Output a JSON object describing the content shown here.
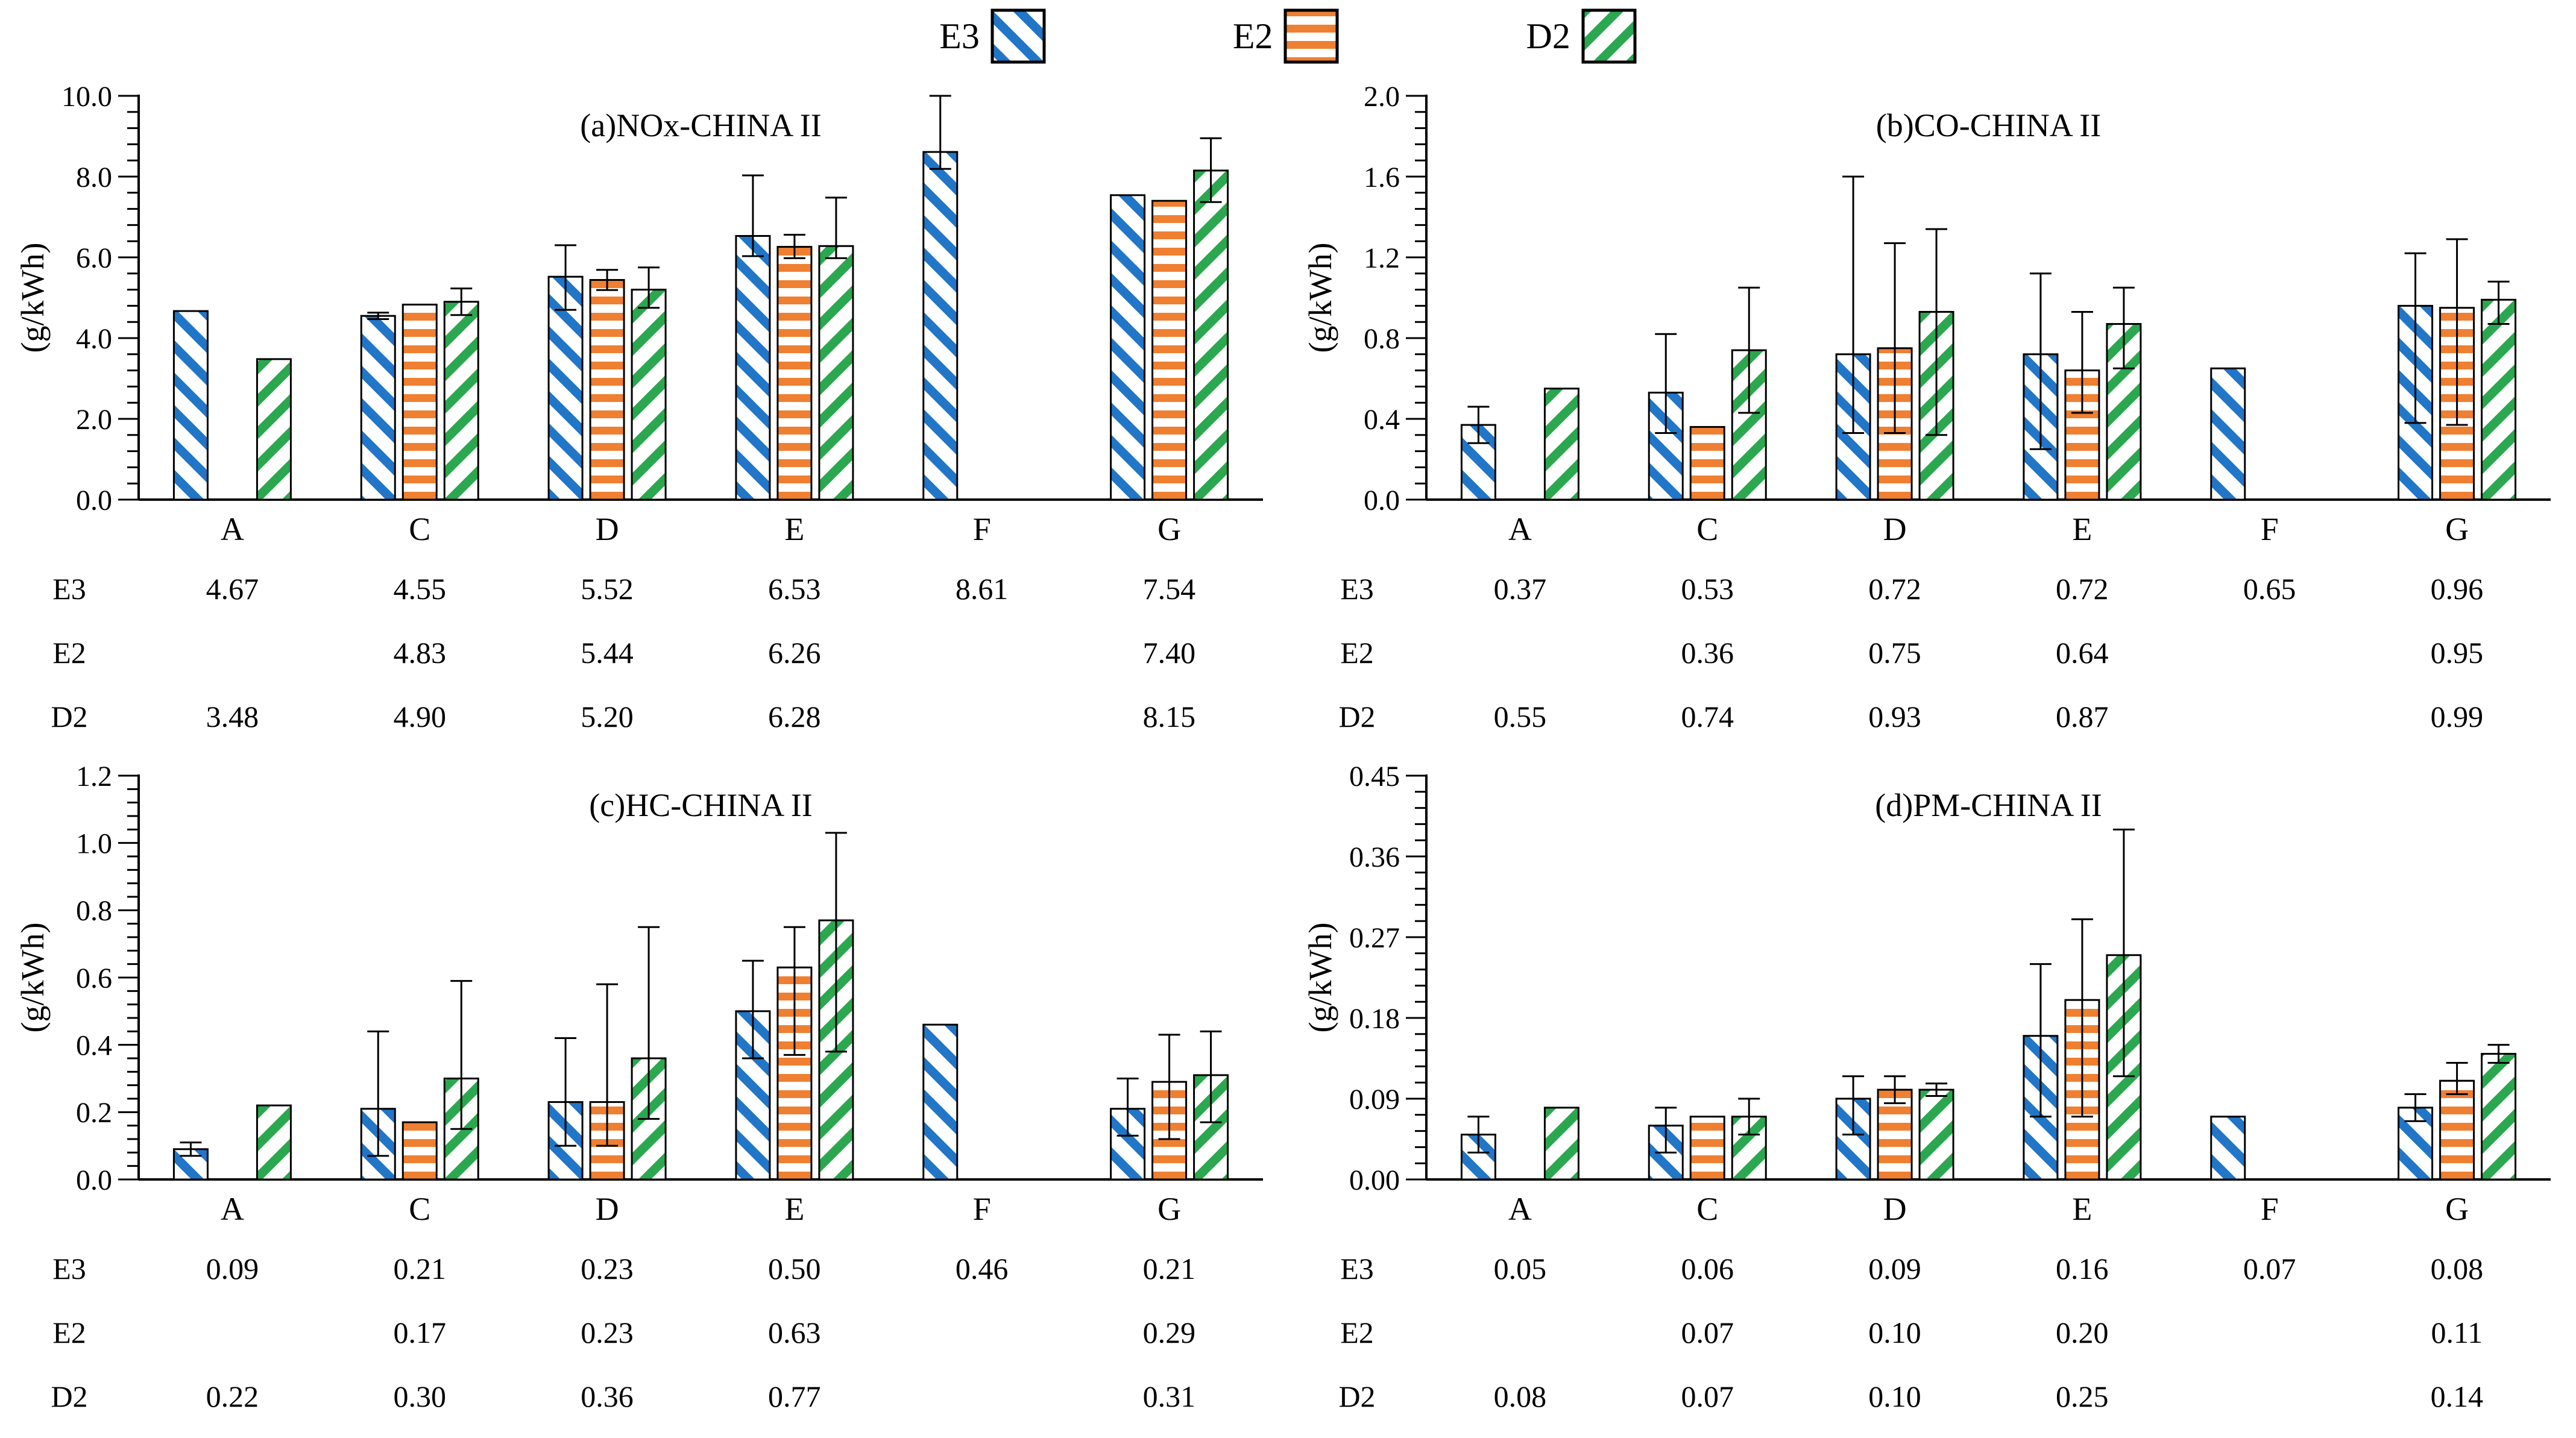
{
  "legend": {
    "items": [
      {
        "label": "E3",
        "series": "E3"
      },
      {
        "label": "E2",
        "series": "E2"
      },
      {
        "label": "D2",
        "series": "D2"
      }
    ]
  },
  "colors": {
    "E3": "#2176C7",
    "E2": "#EF8032",
    "D2": "#2BA84F"
  },
  "patterns": {
    "E3": "diagonal-down-hatch",
    "E2": "horizontal-stripes",
    "D2": "diagonal-up-hatch"
  },
  "chart_data": [
    {
      "type": "bar",
      "title": "(a)NOx-CHINA II",
      "ylabel": "(g/kWh)",
      "categories": [
        "A",
        "C",
        "D",
        "E",
        "F",
        "G"
      ],
      "ylim": [
        0,
        10
      ],
      "ytick_step": 2,
      "minor_per_major": 5,
      "tick_decimals": 1,
      "grid": false,
      "legend_position": "top",
      "series": [
        {
          "name": "E3",
          "values": [
            4.67,
            4.55,
            5.52,
            6.53,
            8.61,
            7.54
          ],
          "errors": [
            null,
            [
              0.08,
              0.08
            ],
            [
              0.82,
              0.78
            ],
            [
              0.5,
              1.5
            ],
            [
              0.42,
              1.39
            ],
            null
          ]
        },
        {
          "name": "E2",
          "values": [
            null,
            4.83,
            5.44,
            6.26,
            null,
            7.4
          ],
          "errors": [
            null,
            null,
            [
              0.25,
              0.25
            ],
            [
              0.28,
              0.3
            ],
            null,
            null
          ]
        },
        {
          "name": "D2",
          "values": [
            3.48,
            4.9,
            5.2,
            6.28,
            null,
            8.15
          ],
          "errors": [
            null,
            [
              0.33,
              0.33
            ],
            [
              0.45,
              0.55
            ],
            [
              0.3,
              1.2
            ],
            null,
            [
              0.78,
              0.8
            ]
          ]
        }
      ]
    },
    {
      "type": "bar",
      "title": "(b)CO-CHINA II",
      "ylabel": "(g/kWh)",
      "categories": [
        "A",
        "C",
        "D",
        "E",
        "F",
        "G"
      ],
      "ylim": [
        0,
        2.0
      ],
      "ytick_step": 0.4,
      "minor_per_major": 5,
      "tick_decimals": 1,
      "grid": false,
      "legend_position": "top",
      "series": [
        {
          "name": "E3",
          "values": [
            0.37,
            0.53,
            0.72,
            0.72,
            0.65,
            0.96
          ],
          "errors": [
            [
              0.09,
              0.09
            ],
            [
              0.2,
              0.29
            ],
            [
              0.39,
              0.88
            ],
            [
              0.47,
              0.4
            ],
            null,
            [
              0.58,
              0.26
            ]
          ]
        },
        {
          "name": "E2",
          "values": [
            null,
            0.36,
            0.75,
            0.64,
            null,
            0.95
          ],
          "errors": [
            null,
            null,
            [
              0.42,
              0.52
            ],
            [
              0.21,
              0.29
            ],
            null,
            [
              0.58,
              0.34
            ]
          ]
        },
        {
          "name": "D2",
          "values": [
            0.55,
            0.74,
            0.93,
            0.87,
            null,
            0.99
          ],
          "errors": [
            null,
            [
              0.31,
              0.31
            ],
            [
              0.61,
              0.41
            ],
            [
              0.22,
              0.18
            ],
            null,
            [
              0.12,
              0.09
            ]
          ]
        }
      ]
    },
    {
      "type": "bar",
      "title": "(c)HC-CHINA II",
      "ylabel": "(g/kWh)",
      "categories": [
        "A",
        "C",
        "D",
        "E",
        "F",
        "G"
      ],
      "ylim": [
        0,
        1.2
      ],
      "ytick_step": 0.2,
      "minor_per_major": 5,
      "tick_decimals": 1,
      "grid": false,
      "legend_position": "top",
      "series": [
        {
          "name": "E3",
          "values": [
            0.09,
            0.21,
            0.23,
            0.5,
            0.46,
            0.21
          ],
          "errors": [
            [
              0.02,
              0.02
            ],
            [
              0.14,
              0.23
            ],
            [
              0.13,
              0.19
            ],
            [
              0.14,
              0.15
            ],
            null,
            [
              0.08,
              0.09
            ]
          ]
        },
        {
          "name": "E2",
          "values": [
            null,
            0.17,
            0.23,
            0.63,
            null,
            0.29
          ],
          "errors": [
            null,
            null,
            [
              0.13,
              0.35
            ],
            [
              0.26,
              0.12
            ],
            null,
            [
              0.17,
              0.14
            ]
          ]
        },
        {
          "name": "D2",
          "values": [
            0.22,
            0.3,
            0.36,
            0.77,
            null,
            0.31
          ],
          "errors": [
            null,
            [
              0.15,
              0.29
            ],
            [
              0.18,
              0.39
            ],
            [
              0.39,
              0.26
            ],
            null,
            [
              0.14,
              0.13
            ]
          ]
        }
      ]
    },
    {
      "type": "bar",
      "title": "(d)PM-CHINA II",
      "ylabel": "(g/kWh)",
      "categories": [
        "A",
        "C",
        "D",
        "E",
        "F",
        "G"
      ],
      "ylim": [
        0,
        0.45
      ],
      "ytick_step": 0.09,
      "minor_per_major": 5,
      "tick_decimals": 2,
      "grid": false,
      "legend_position": "top",
      "series": [
        {
          "name": "E3",
          "values": [
            0.05,
            0.06,
            0.09,
            0.16,
            0.07,
            0.08
          ],
          "errors": [
            [
              0.02,
              0.02
            ],
            [
              0.03,
              0.02
            ],
            [
              0.04,
              0.025
            ],
            [
              0.09,
              0.08
            ],
            null,
            [
              0.015,
              0.015
            ]
          ]
        },
        {
          "name": "E2",
          "values": [
            null,
            0.07,
            0.1,
            0.2,
            null,
            0.11
          ],
          "errors": [
            null,
            null,
            [
              0.015,
              0.015
            ],
            [
              0.13,
              0.09
            ],
            null,
            [
              0.015,
              0.02
            ]
          ]
        },
        {
          "name": "D2",
          "values": [
            0.08,
            0.07,
            0.1,
            0.25,
            null,
            0.14
          ],
          "errors": [
            null,
            [
              0.02,
              0.02
            ],
            [
              0.007,
              0.007
            ],
            [
              0.135,
              0.14
            ],
            null,
            [
              0.01,
              0.01
            ]
          ]
        }
      ]
    }
  ]
}
